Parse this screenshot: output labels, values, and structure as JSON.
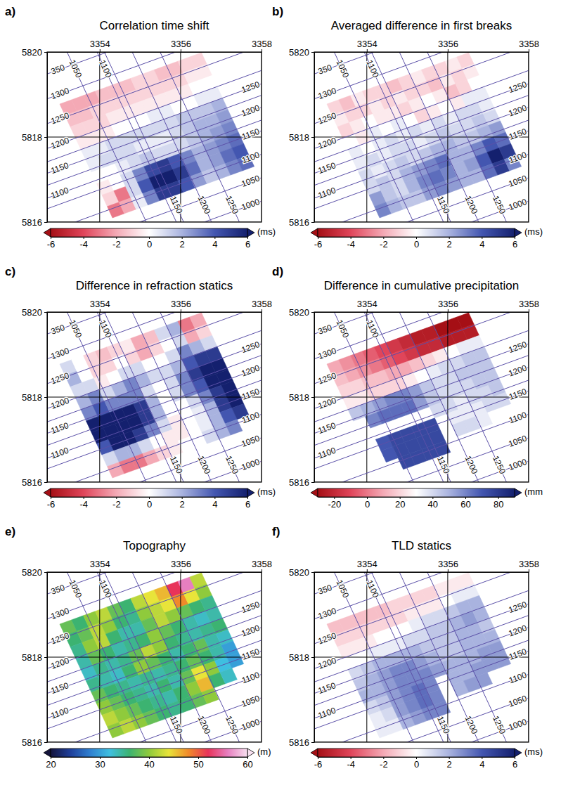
{
  "chart_data": [
    {
      "type": "heatmap",
      "letter": "a)",
      "title": "Correlation time shift",
      "xlim": [
        3352.7,
        3358
      ],
      "ylim": [
        5816,
        5820
      ],
      "xticks": [
        3354,
        3356,
        3358
      ],
      "yticks": [
        5816,
        5818,
        5820
      ],
      "grid": true,
      "cells": [
        [
          -2,
          -2,
          -2,
          -1.5,
          -1.5,
          -1.5,
          -1,
          -1,
          -1.5,
          -1.5,
          -1,
          -1
        ],
        [
          -1.5,
          -1.5,
          -1,
          -1,
          -1,
          -1,
          -1,
          -1,
          -1,
          -1,
          -0.5,
          -0.5
        ],
        [
          -1,
          -1,
          -1,
          -0.5,
          -0.5,
          -0.5,
          -0.5,
          -0.5,
          -0.5,
          -0.5,
          0,
          0
        ],
        [
          -0.5,
          -0.5,
          -0.5,
          0,
          0,
          0,
          0.5,
          0.5,
          0,
          0,
          0.5,
          0.5
        ],
        [
          0.5,
          0.5,
          1,
          1,
          1,
          1,
          1,
          1,
          1.5,
          1.5,
          1.5,
          2
        ],
        [
          0.5,
          1,
          1,
          1,
          0.5,
          0.5,
          0.5,
          1,
          1.5,
          2,
          2,
          2.5
        ],
        [
          0,
          0,
          0.5,
          1,
          1.5,
          1,
          1,
          1,
          1.5,
          2,
          2.5,
          3
        ],
        [
          -0.5,
          0,
          1,
          3,
          4.5,
          5,
          4,
          3,
          2,
          2.5,
          3,
          3.5
        ],
        [
          -1,
          -3,
          1,
          4,
          6,
          6,
          5,
          3.5,
          2,
          2.5,
          3.5,
          4
        ],
        [
          -3,
          -2,
          0.5,
          3,
          5,
          5,
          4,
          2.5,
          1.5,
          2,
          3,
          3.5
        ]
      ],
      "colorbar": {
        "range": [
          -6,
          6
        ],
        "ticks": [
          -6,
          -4,
          -2,
          0,
          2,
          4,
          6
        ],
        "label": "(ms)",
        "colors": [
          "#a50f15",
          "#e0455a",
          "#f4a9b5",
          "#ffffff",
          "#a9b3df",
          "#4356b0",
          "#14206e"
        ]
      },
      "survey_labels": {
        "left": [
          "350",
          "1300",
          "1250",
          "1200",
          "1150",
          "1100"
        ],
        "right": [
          "1250",
          "1200",
          "1150",
          "1100",
          "1050",
          "1000"
        ],
        "top": [
          "1050",
          "1100"
        ],
        "bottom": [
          "1150",
          "1200",
          "1250"
        ]
      }
    },
    {
      "type": "heatmap",
      "letter": "b)",
      "title": "Averaged difference in first breaks",
      "xlim": [
        3352.7,
        3358
      ],
      "ylim": [
        5816,
        5820
      ],
      "xticks": [
        3354,
        3356,
        3358
      ],
      "yticks": [
        5816,
        5818,
        5820
      ],
      "grid": true,
      "cells": [
        [
          -1,
          -1.5,
          -0.5,
          -1,
          -1,
          -1.5,
          -1,
          -0.5,
          -1,
          -1,
          -0.5,
          -1
        ],
        [
          -0.5,
          -1,
          -1,
          -0.5,
          -1,
          -0.5,
          -1,
          -1,
          -1.5,
          -0.5,
          -1,
          -0.5
        ],
        [
          -1,
          -0.5,
          0,
          -0.5,
          -0.5,
          -1,
          -0.5,
          0,
          -0.5,
          -1.5,
          -1,
          0
        ],
        [
          0,
          -0.5,
          0.5,
          0,
          0.5,
          0,
          -1,
          -0.5,
          0,
          -0.5,
          0.5,
          0.5
        ],
        [
          0.5,
          0,
          0.5,
          1,
          0.5,
          1,
          0.5,
          1,
          0.5,
          1,
          1,
          0.5
        ],
        [
          0.5,
          1,
          0.5,
          1,
          1,
          0.5,
          1,
          1.5,
          1,
          1,
          1.5,
          1
        ],
        [
          1,
          0.5,
          1,
          1.5,
          1,
          1.5,
          2,
          2,
          1.5,
          1.5,
          2,
          2.5
        ],
        [
          1,
          1.5,
          1,
          2,
          2.5,
          3,
          3.5,
          2,
          2,
          3,
          4,
          3.5
        ],
        [
          2.5,
          1.5,
          1,
          2,
          3,
          3.5,
          3,
          2,
          2.5,
          4,
          6,
          5
        ],
        [
          3,
          2,
          1.5,
          1.5,
          2.5,
          3,
          2.5,
          2,
          2,
          3.5,
          5,
          3
        ]
      ],
      "colorbar": {
        "range": [
          -6,
          6
        ],
        "ticks": [
          -6,
          -4,
          -2,
          0,
          2,
          4,
          6
        ],
        "label": "(ms)",
        "colors": [
          "#a50f15",
          "#e0455a",
          "#f4a9b5",
          "#ffffff",
          "#a9b3df",
          "#4356b0",
          "#14206e"
        ]
      },
      "survey_labels": {
        "left": [
          "350",
          "1300",
          "1250",
          "1200",
          "1150",
          "1100"
        ],
        "right": [
          "1250",
          "1200",
          "1150",
          "1100",
          "1050",
          "1000"
        ],
        "top": [
          "1050",
          "1100"
        ],
        "bottom": [
          "1150",
          "1200",
          "1250"
        ]
      }
    },
    {
      "type": "heatmap",
      "letter": "c)",
      "title": "Difference in refraction statics",
      "xlim": [
        3352.7,
        3358
      ],
      "ylim": [
        5816,
        5820
      ],
      "xticks": [
        3354,
        3356,
        3358
      ],
      "yticks": [
        5816,
        5818,
        5820
      ],
      "grid": true,
      "cells": [
        [
          1,
          0,
          -1,
          -1.5,
          -1,
          -0.5,
          -2,
          -1.5,
          1,
          2,
          -3,
          -2
        ],
        [
          2,
          0,
          -1,
          -1,
          0,
          -1,
          -2,
          -1,
          0,
          1,
          -2,
          -1
        ],
        [
          1,
          1,
          -0.5,
          0,
          1,
          1,
          0,
          0,
          1,
          3,
          2,
          1
        ],
        [
          2,
          3,
          1,
          2,
          3,
          2,
          1,
          1,
          2,
          4,
          5,
          5
        ],
        [
          3,
          4,
          3,
          3,
          3,
          1,
          0,
          1,
          3,
          5,
          6,
          6
        ],
        [
          6,
          6,
          6,
          6,
          5,
          2,
          0,
          1,
          3,
          4,
          6,
          6
        ],
        [
          6,
          6,
          6,
          6,
          5,
          2,
          0,
          0,
          1,
          3,
          5,
          6
        ],
        [
          4,
          6,
          6,
          5,
          3,
          1,
          -0.5,
          0,
          0.5,
          2,
          5,
          6
        ],
        [
          1,
          2,
          2,
          1,
          0,
          -0.5,
          -0.5,
          0,
          0.5,
          2,
          4,
          5
        ],
        [
          -2,
          -3,
          -3,
          -2,
          -1,
          -0.5,
          0,
          0,
          1,
          2,
          3,
          null
        ]
      ],
      "colorbar": {
        "range": [
          -6,
          6
        ],
        "ticks": [
          -6,
          -4,
          -2,
          0,
          2,
          4,
          6
        ],
        "label": "(ms)",
        "colors": [
          "#a50f15",
          "#e0455a",
          "#f4a9b5",
          "#ffffff",
          "#a9b3df",
          "#4356b0",
          "#14206e"
        ]
      },
      "survey_labels": {
        "left": [
          "350",
          "1300",
          "1250",
          "1200",
          "1150",
          "1100"
        ],
        "right": [
          "1250",
          "1200",
          "1150",
          "1100",
          "1050",
          "1000"
        ],
        "top": [
          "1050",
          "1100"
        ],
        "bottom": [
          "1150",
          "1200",
          "1250"
        ]
      }
    },
    {
      "type": "heatmap",
      "letter": "d)",
      "title": "Difference in cumulative precipitation",
      "xlim": [
        3352.7,
        3358
      ],
      "ylim": [
        5816,
        5820
      ],
      "xticks": [
        3354,
        3356,
        3358
      ],
      "yticks": [
        5816,
        5818,
        5820
      ],
      "grid": true,
      "cells": [
        [
          10,
          5,
          0,
          -5,
          -10,
          -15,
          -20,
          -25,
          -25,
          -30,
          -30,
          -30
        ],
        [
          15,
          10,
          5,
          0,
          -5,
          -10,
          -15,
          -20,
          -20,
          -25,
          -25,
          -25
        ],
        [
          20,
          20,
          15,
          15,
          10,
          10,
          15,
          20,
          25,
          30,
          35,
          35
        ],
        [
          25,
          25,
          20,
          20,
          20,
          25,
          30,
          35,
          40,
          40,
          45,
          45
        ],
        [
          45,
          50,
          55,
          60,
          60,
          55,
          45,
          40,
          40,
          45,
          45,
          45
        ],
        [
          null,
          60,
          65,
          65,
          65,
          55,
          45,
          40,
          40,
          40,
          45,
          45
        ],
        [
          null,
          null,
          null,
          null,
          null,
          null,
          40,
          40,
          35,
          40,
          40,
          45
        ],
        [
          null,
          70,
          75,
          75,
          75,
          75,
          null,
          35,
          35,
          35,
          40,
          40
        ],
        [
          null,
          70,
          75,
          75,
          75,
          75,
          null,
          40,
          40,
          35,
          null,
          null
        ],
        [
          null,
          null,
          75,
          75,
          75,
          75,
          null,
          null,
          null,
          null,
          null,
          null
        ]
      ],
      "colorbar": {
        "range": [
          -30,
          90
        ],
        "ticks": [
          -20,
          0,
          20,
          40,
          60,
          80
        ],
        "label": "(mm",
        "colors": [
          "#a50f15",
          "#e0455a",
          "#f4a9b5",
          "#ffffff",
          "#a9b3df",
          "#4356b0",
          "#14206e"
        ]
      },
      "survey_labels": {
        "left": [
          "350",
          "1300",
          "1250",
          "1200",
          "1150",
          "1100"
        ],
        "right": [
          "1250",
          "1200",
          "1150",
          "1100",
          "1050",
          "1000"
        ],
        "top": [
          "1050",
          "1100"
        ],
        "bottom": [
          "1150",
          "1200",
          "1250"
        ]
      }
    },
    {
      "type": "heatmap",
      "letter": "e)",
      "title": "Topography",
      "xlim": [
        3352.7,
        3358
      ],
      "ylim": [
        5816,
        5820
      ],
      "xticks": [
        3354,
        3356,
        3358
      ],
      "yticks": [
        5816,
        5818,
        5820
      ],
      "grid": true,
      "cells": [
        [
          38,
          36,
          40,
          42,
          38,
          36,
          42,
          44,
          46,
          52,
          56,
          42
        ],
        [
          36,
          38,
          42,
          40,
          36,
          35,
          40,
          42,
          44,
          48,
          44,
          40
        ],
        [
          35,
          40,
          42,
          36,
          34,
          34,
          38,
          42,
          40,
          38,
          36,
          35
        ],
        [
          34,
          38,
          36,
          34,
          35,
          36,
          40,
          38,
          36,
          34,
          33,
          34
        ],
        [
          33,
          35,
          34,
          35,
          38,
          42,
          40,
          36,
          35,
          34,
          35,
          36
        ],
        [
          35,
          34,
          33,
          36,
          40,
          38,
          36,
          34,
          36,
          38,
          34,
          33
        ],
        [
          38,
          36,
          35,
          34,
          35,
          34,
          35,
          36,
          38,
          36,
          34,
          30
        ],
        [
          40,
          38,
          36,
          35,
          34,
          36,
          34,
          38,
          44,
          40,
          32,
          30
        ],
        [
          42,
          40,
          38,
          36,
          35,
          34,
          36,
          40,
          46,
          36,
          33,
          null
        ],
        [
          40,
          42,
          40,
          38,
          36,
          35,
          36,
          38,
          40,
          null,
          null,
          null
        ]
      ],
      "colorbar": {
        "range": [
          20,
          60
        ],
        "ticks": [
          20,
          30,
          40,
          50,
          60
        ],
        "label": "(m)",
        "colors": [
          "#14143c",
          "#1f3f9a",
          "#2f7fd0",
          "#3fbfe0",
          "#3cb371",
          "#8fca3c",
          "#e8e43a",
          "#f08a2a",
          "#e8335a",
          "#e77fc0",
          "#f8e0f0"
        ]
      },
      "survey_labels": {
        "left": [
          "350",
          "1300",
          "1250",
          "1200",
          "1150",
          "1100"
        ],
        "right": [
          "1250",
          "1200",
          "1150",
          "1100",
          "1050",
          "1000"
        ],
        "top": [
          "1050",
          "1100"
        ],
        "bottom": [
          "1150",
          "1200",
          "1250"
        ]
      }
    },
    {
      "type": "heatmap",
      "letter": "f)",
      "title": "TLD statics",
      "xlim": [
        3352.7,
        3358
      ],
      "ylim": [
        5816,
        5820
      ],
      "xticks": [
        3354,
        3356,
        3358
      ],
      "yticks": [
        5816,
        5818,
        5820
      ],
      "grid": true,
      "cells": [
        [
          -1.5,
          -1.5,
          -1.5,
          -1.5,
          -1.5,
          -1,
          -1,
          -1,
          -1,
          -0.5,
          -0.5,
          -0.5
        ],
        [
          -1,
          -1,
          -1,
          -1,
          -1,
          -1,
          -0.5,
          -0.5,
          -0.5,
          0,
          0.5,
          0.5
        ],
        [
          -0.5,
          -0.5,
          -0.5,
          0,
          0,
          0,
          0.5,
          1,
          1,
          1.5,
          2,
          2
        ],
        [
          0,
          0,
          0.5,
          0.5,
          0.5,
          1,
          1,
          1.5,
          1.5,
          2,
          2.5,
          2
        ],
        [
          1,
          1.5,
          2,
          2,
          2,
          2,
          1.5,
          1.5,
          1.5,
          2,
          2,
          1.5
        ],
        [
          1.5,
          2,
          2.5,
          3,
          3,
          2.5,
          2,
          1.5,
          1.5,
          2,
          2,
          2
        ],
        [
          2,
          2,
          2.5,
          3,
          3,
          3,
          2.5,
          2,
          2,
          2,
          2.5,
          2.5
        ],
        [
          1,
          1.5,
          2.5,
          3,
          3.5,
          3,
          null,
          2,
          2,
          2.5,
          2.5,
          2.5
        ],
        [
          0.5,
          1,
          2.5,
          3,
          3.5,
          3,
          null,
          2,
          2.5,
          2.5,
          null,
          null
        ],
        [
          0.5,
          0.5,
          2,
          2.5,
          3,
          3,
          null,
          null,
          null,
          null,
          null,
          null
        ]
      ],
      "colorbar": {
        "range": [
          -6,
          6
        ],
        "ticks": [
          -6,
          -4,
          -2,
          0,
          2,
          4,
          6
        ],
        "label": "(ms)",
        "colors": [
          "#a50f15",
          "#e0455a",
          "#f4a9b5",
          "#ffffff",
          "#a9b3df",
          "#4356b0",
          "#14206e"
        ]
      },
      "survey_labels": {
        "left": [
          "350",
          "1300",
          "1250",
          "1200",
          "1150",
          "1100"
        ],
        "right": [
          "1250",
          "1200",
          "1150",
          "1100",
          "1050",
          "1000"
        ],
        "top": [
          "1050",
          "1100"
        ],
        "bottom": [
          "1150",
          "1200",
          "1250"
        ]
      }
    }
  ]
}
